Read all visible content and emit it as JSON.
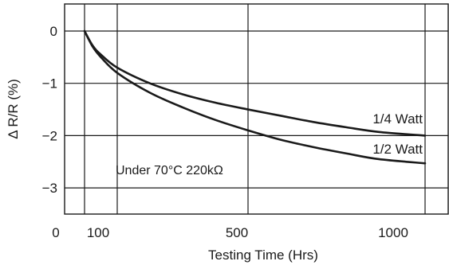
{
  "chart_data": {
    "type": "line",
    "xlabel": "Testing Time (Hrs)",
    "ylabel": "Δ R/R (%)",
    "x_ticks": [
      0,
      100,
      500,
      1000
    ],
    "x_tick_labels": [
      "0",
      "100",
      "500",
      "1000"
    ],
    "x_grid": [
      100,
      200,
      600,
      1100
    ],
    "y_ticks": [
      0,
      -1,
      -2,
      -3
    ],
    "y_tick_labels": [
      "0",
      "−1",
      "−2",
      "−3"
    ],
    "xlim": [
      0,
      1100
    ],
    "ylim": [
      -3.45,
      0.5
    ],
    "grid": true,
    "annotation": "Under 70°C 220kΩ",
    "series": [
      {
        "name": "1/4 Watt",
        "x": [
          100,
          125,
          150,
          200,
          300,
          400,
          500,
          600,
          700,
          800,
          900,
          1000,
          1100
        ],
        "y": [
          0,
          -0.28,
          -0.45,
          -0.7,
          -1.0,
          -1.21,
          -1.37,
          -1.5,
          -1.62,
          -1.74,
          -1.84,
          -1.93,
          -2.0
        ]
      },
      {
        "name": "1/2 Watt",
        "x": [
          100,
          125,
          150,
          200,
          300,
          400,
          500,
          600,
          700,
          800,
          900,
          1000,
          1100
        ],
        "y": [
          0,
          -0.3,
          -0.5,
          -0.8,
          -1.18,
          -1.46,
          -1.7,
          -1.9,
          -2.08,
          -2.22,
          -2.34,
          -2.45,
          -2.53
        ]
      }
    ]
  }
}
